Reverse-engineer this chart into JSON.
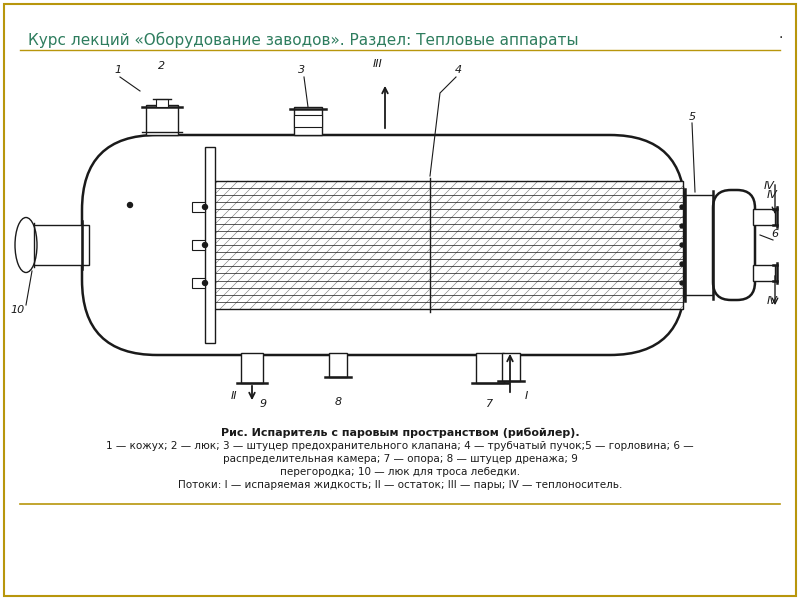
{
  "title": "Курс лекций «Оборудование заводов». Раздел: Тепловые аппараты",
  "title_color": "#2e7d5e",
  "title_fontsize": 11,
  "bg_color": "#ffffff",
  "border_color": "#b8960c",
  "caption_bold": "Рис. Испаритель с паровым пространством (рибойлер).",
  "caption_line1": "1 — кожух; 2 — люк; 3 — штуцер предохранительного клапана; 4 — трубчатый пучок;5 — горловина; 6 —",
  "caption_line2": "распределительная камера; 7 — опора; 8 — штуцер дренажа; 9",
  "caption_line3": "перегородка; 10 — люк для троса лебедки.",
  "caption_line4": "Потоки: I — испаряемая жидкость; II — остаток; III — пары; IV — теплоноситель.",
  "drawing_color": "#1a1a1a",
  "line_width": 1.0,
  "thick_line": 1.8
}
